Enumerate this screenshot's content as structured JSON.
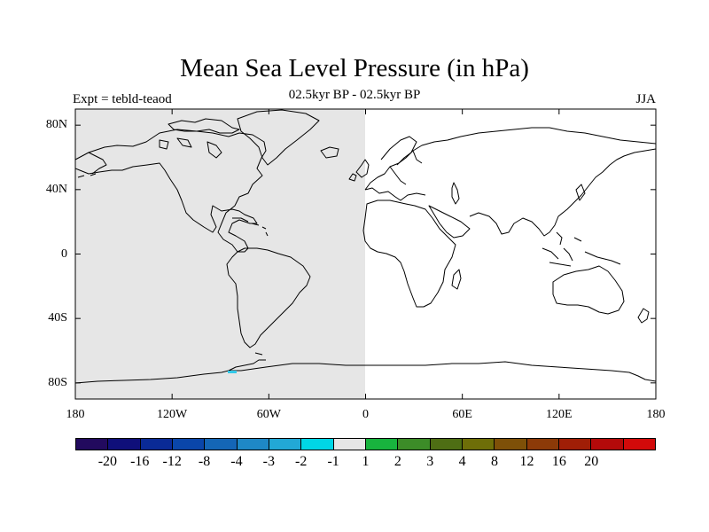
{
  "title": "Mean Sea Level Pressure (in hPa)",
  "subtitle": "02.5kyr BP - 02.5kyr BP",
  "experiment_label": "Expt = tebld-teaod",
  "season_label": "JJA",
  "map": {
    "projection": "cylindrical-equidistant",
    "lon_range": [
      -180,
      180
    ],
    "lat_range": [
      -90,
      90
    ],
    "shaded_region": {
      "lon_range": [
        -180,
        0
      ],
      "color": "#e6e6e6"
    },
    "coastline_color": "#000000",
    "highlight_color": "#33c8e8",
    "y_tick_labels": [
      "80N",
      "40N",
      "0",
      "40S",
      "80S"
    ],
    "x_tick_labels": [
      "180",
      "120W",
      "60W",
      "0",
      "60E",
      "120E",
      "180"
    ]
  },
  "colorbar": {
    "colors": [
      "#220a5e",
      "#0f0f7a",
      "#0a2a96",
      "#0a46aa",
      "#1466b6",
      "#1e88c6",
      "#22a8d6",
      "#00d6e6",
      "#e6e6e6",
      "#18b43e",
      "#3c8c28",
      "#4e6e14",
      "#6e6e08",
      "#7e5008",
      "#8c3a08",
      "#a01e06",
      "#b40a0a",
      "#d20a0a"
    ],
    "labels": [
      "-20",
      "-16",
      "-12",
      "-8",
      "-4",
      "-3",
      "-2",
      "-1",
      "1",
      "2",
      "3",
      "4",
      "8",
      "12",
      "16",
      "20"
    ]
  }
}
